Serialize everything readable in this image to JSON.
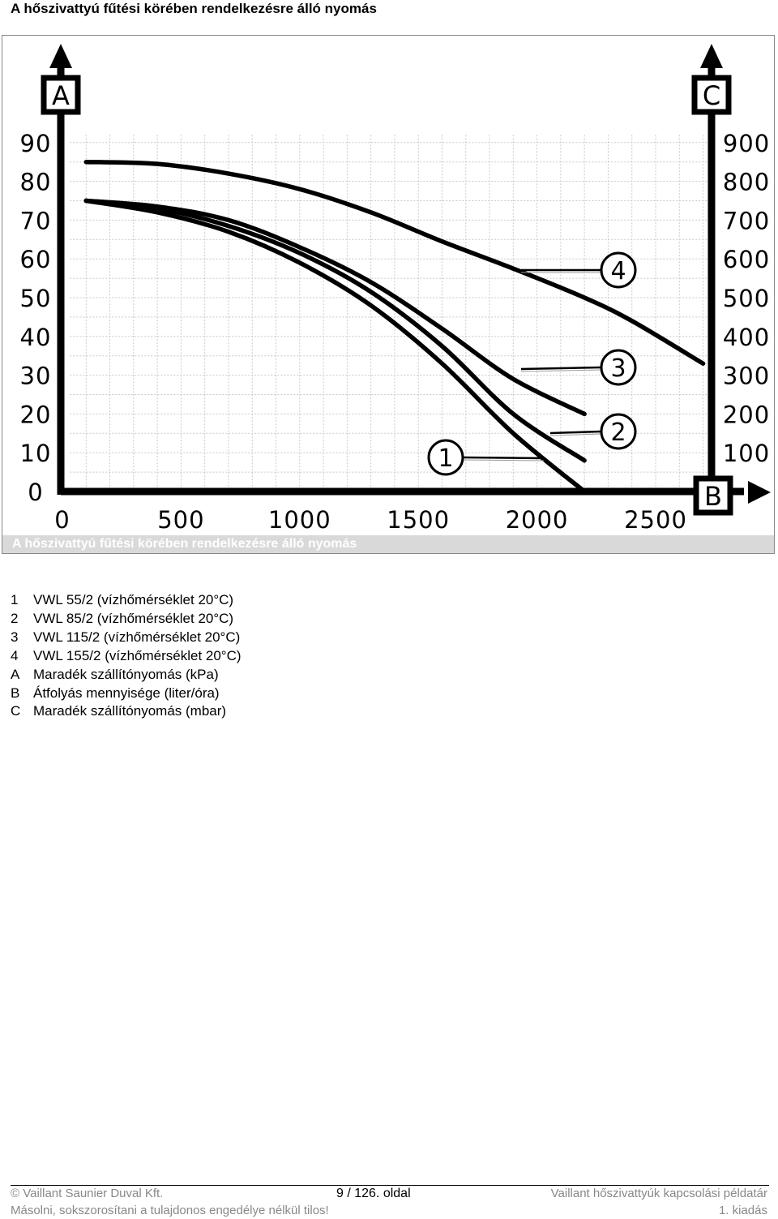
{
  "page": {
    "title": "A hőszivattyú fűtési körében rendelkezésre álló nyomás"
  },
  "figure": {
    "caption": "A hőszivattyú fűtési körében rendelkezésre álló nyomás",
    "axis_markers": {
      "left": "A",
      "right": "C",
      "bottom": "B"
    }
  },
  "chart_data": {
    "type": "line",
    "x_ticks": [
      "0",
      "500",
      "1000",
      "1500",
      "2000",
      "2500"
    ],
    "y_left_ticks": [
      "0",
      "10",
      "20",
      "30",
      "40",
      "50",
      "60",
      "70",
      "80",
      "90"
    ],
    "y_right_ticks": [
      "100",
      "200",
      "300",
      "400",
      "500",
      "600",
      "700",
      "800",
      "900"
    ],
    "xlim": [
      0,
      2500
    ],
    "ylim": [
      0,
      90
    ],
    "grid": true,
    "series": [
      {
        "name": "1",
        "x": [
          100,
          400,
          700,
          1000,
          1300,
          1600,
          1900,
          2200
        ],
        "y": [
          75,
          72,
          67,
          59,
          48,
          33,
          15,
          0
        ]
      },
      {
        "name": "2",
        "x": [
          100,
          400,
          700,
          1000,
          1300,
          1600,
          1900,
          2200
        ],
        "y": [
          75,
          73,
          68.5,
          61.5,
          51.5,
          37.5,
          20,
          8
        ]
      },
      {
        "name": "3",
        "x": [
          100,
          400,
          700,
          1000,
          1300,
          1600,
          1900,
          2200
        ],
        "y": [
          75,
          73.5,
          70,
          63,
          54,
          42,
          29,
          20
        ]
      },
      {
        "name": "4",
        "x": [
          100,
          400,
          700,
          1000,
          1300,
          1600,
          1900,
          2200,
          2400,
          2700
        ],
        "y": [
          85,
          84.5,
          82,
          78,
          72,
          64.5,
          57.5,
          50,
          44,
          33
        ]
      }
    ]
  },
  "legend": [
    {
      "key": "1",
      "text": "VWL 55/2 (vízhőmérséklet 20°C)"
    },
    {
      "key": "2",
      "text": "VWL 85/2 (vízhőmérséklet 20°C)"
    },
    {
      "key": "3",
      "text": "VWL 115/2 (vízhőmérséklet 20°C)"
    },
    {
      "key": "4",
      "text": "VWL 155/2 (vízhőmérséklet 20°C)"
    },
    {
      "key": "A",
      "text": "Maradék szállítónyomás (kPa)"
    },
    {
      "key": "B",
      "text": "Átfolyás mennyisége (liter/óra)"
    },
    {
      "key": "C",
      "text": "Maradék szállítónyomás (mbar)"
    }
  ],
  "footer": {
    "copyright": "© Vaillant Saunier Duval Kft.",
    "page_number": "9 / 126. oldal",
    "doc_title": "Vaillant hőszivattyúk kapcsolási példatár",
    "notice": "Másolni, sokszorosítani a tulajdonos engedélye nélkül tilos!",
    "edition": "1. kiadás"
  }
}
